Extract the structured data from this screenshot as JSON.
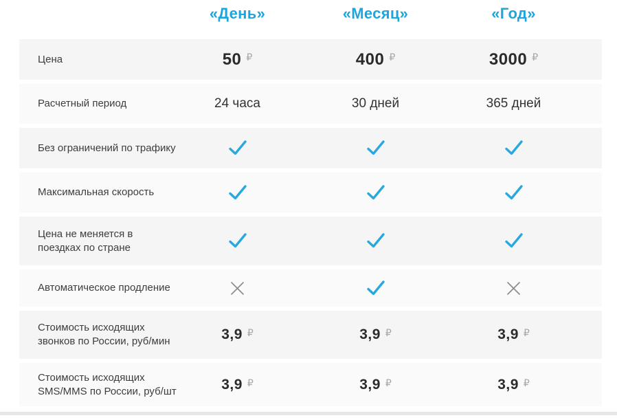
{
  "colors": {
    "accent_blue": "#1da5dd",
    "check_blue": "#29a8de",
    "cross_gray": "#8c8c8c",
    "row_dark_bg": "#f5f5f5",
    "row_light_bg": "#fafafa"
  },
  "currency": "₽",
  "header": {
    "columns": [
      {
        "label": "«День»"
      },
      {
        "label": "«Месяц»"
      },
      {
        "label": "«Год»"
      }
    ]
  },
  "rows": [
    {
      "label": "Цена",
      "type": "price",
      "values": [
        "50",
        "400",
        "3000"
      ]
    },
    {
      "label": "Расчетный период",
      "type": "text",
      "values": [
        "24 часа",
        "30 дней",
        "365 дней"
      ]
    },
    {
      "label": "Без ограничений по трафику",
      "type": "mark",
      "values": [
        "check",
        "check",
        "check"
      ]
    },
    {
      "label": "Максимальная скорость",
      "type": "mark",
      "values": [
        "check",
        "check",
        "check"
      ]
    },
    {
      "label": "Цена не меняется в поездках по стране",
      "type": "mark",
      "values": [
        "check",
        "check",
        "check"
      ]
    },
    {
      "label": "Автоматическое продление",
      "type": "mark",
      "values": [
        "cross",
        "check",
        "cross"
      ]
    },
    {
      "label": "Стоимость исходящих звонков по России, руб/мин",
      "type": "price_small",
      "values": [
        "3,9",
        "3,9",
        "3,9"
      ]
    },
    {
      "label": "Стоимость исходящих SMS/MMS по России, руб/шт",
      "type": "price_small",
      "values": [
        "3,9",
        "3,9",
        "3,9"
      ]
    }
  ]
}
